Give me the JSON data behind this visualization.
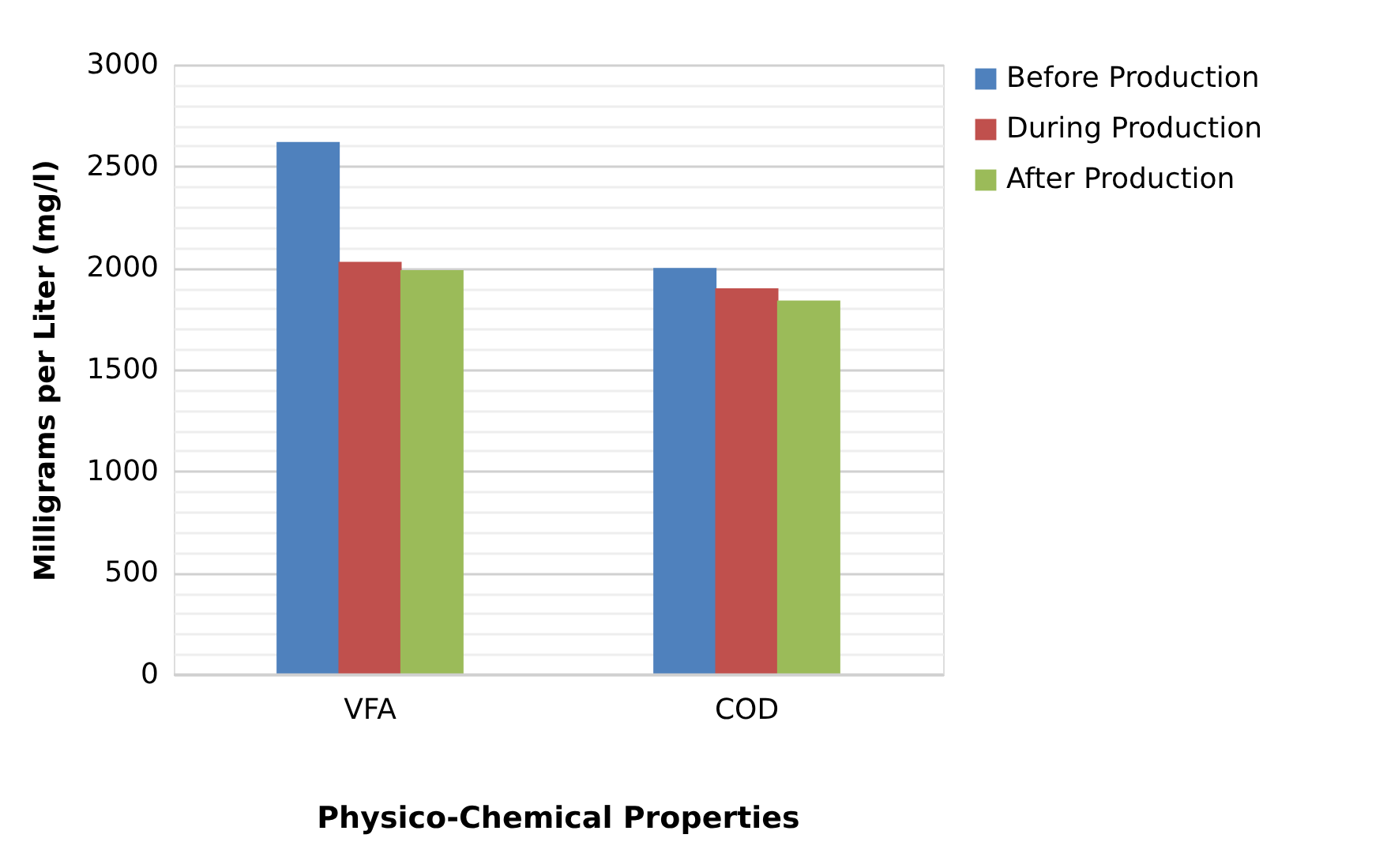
{
  "chart_data": {
    "type": "bar",
    "xlabel": "Physico-Chemical Properties",
    "ylabel": "Milligrams per Liter (mg/l)",
    "categories": [
      "VFA",
      "COD"
    ],
    "series": [
      {
        "name": "Before Production",
        "color": "#4f81bd",
        "values": [
          2620,
          2000
        ]
      },
      {
        "name": "During Production",
        "color": "#c0504d",
        "values": [
          2030,
          1900
        ]
      },
      {
        "name": "After Production",
        "color": "#9bbb59",
        "values": [
          1990,
          1840
        ]
      }
    ],
    "ylim": [
      0,
      3000
    ],
    "yticks": [
      0,
      {
        "value": 100,
        "label": null
      },
      {
        "value": 200,
        "label": null
      },
      {
        "value": 300,
        "label": null
      },
      {
        "value": 400,
        "label": null
      },
      500,
      {
        "value": 600,
        "label": null
      },
      {
        "value": 700,
        "label": null
      },
      {
        "value": 800,
        "label": null
      },
      {
        "value": 900,
        "label": null
      },
      1000,
      {
        "value": 1100,
        "label": null
      },
      {
        "value": 1200,
        "label": null
      },
      {
        "value": 1300,
        "label": null
      },
      {
        "value": 1400,
        "label": null
      },
      1500,
      {
        "value": 1600,
        "label": null
      },
      {
        "value": 1700,
        "label": null
      },
      {
        "value": 1800,
        "label": null
      },
      {
        "value": 1900,
        "label": null
      },
      2000,
      {
        "value": 2100,
        "label": null
      },
      {
        "value": 2200,
        "label": null
      },
      {
        "value": 2300,
        "label": null
      },
      {
        "value": 2400,
        "label": null
      },
      2500,
      {
        "value": 2600,
        "label": null
      },
      {
        "value": 2700,
        "label": null
      },
      {
        "value": 2800,
        "label": null
      },
      {
        "value": 2900,
        "label": null
      },
      3000
    ],
    "grid": "y",
    "legend": "right"
  }
}
